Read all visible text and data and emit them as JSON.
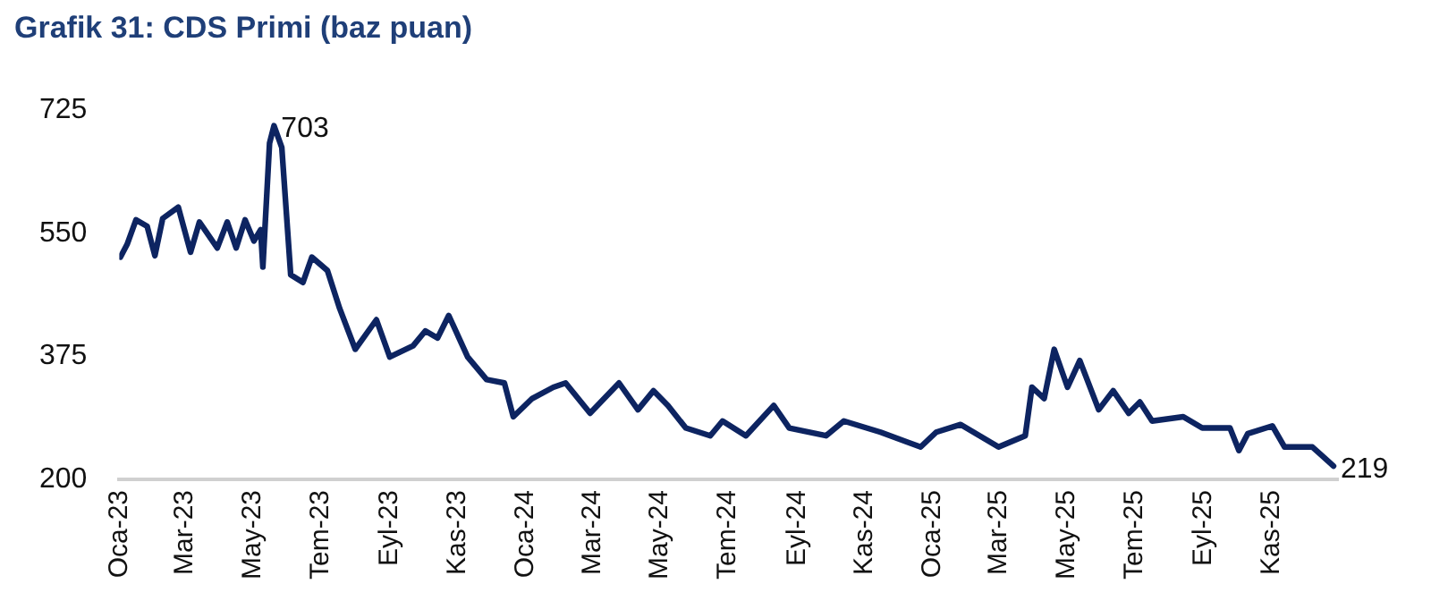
{
  "chart_data": {
    "type": "line",
    "title": "Grafik 31: CDS Primi (baz puan)",
    "x": [
      "2023-01-02",
      "2023-01-08",
      "2023-01-16",
      "2023-01-26",
      "2023-02-02",
      "2023-02-09",
      "2023-02-23",
      "2023-03-06",
      "2023-03-14",
      "2023-03-30",
      "2023-04-08",
      "2023-04-16",
      "2023-04-24",
      "2023-05-02",
      "2023-05-08",
      "2023-05-10",
      "2023-05-16",
      "2023-05-20",
      "2023-05-27",
      "2023-06-04",
      "2023-06-15",
      "2023-06-23",
      "2023-07-07",
      "2023-07-18",
      "2023-08-01",
      "2023-08-20",
      "2023-09-01",
      "2023-09-22",
      "2023-10-03",
      "2023-10-14",
      "2023-10-24",
      "2023-11-10",
      "2023-11-27",
      "2023-12-13",
      "2023-12-21",
      "2024-01-07",
      "2024-01-26",
      "2024-02-06",
      "2024-02-28",
      "2024-03-25",
      "2024-04-11",
      "2024-04-25",
      "2024-05-08",
      "2024-05-24",
      "2024-06-15",
      "2024-06-26",
      "2024-07-17",
      "2024-08-11",
      "2024-08-25",
      "2024-09-27",
      "2024-10-13",
      "2024-11-15",
      "2024-12-21",
      "2025-01-04",
      "2025-01-26",
      "2025-03-01",
      "2025-03-25",
      "2025-03-31",
      "2025-04-11",
      "2025-04-20",
      "2025-05-02",
      "2025-05-13",
      "2025-05-30",
      "2025-06-12",
      "2025-06-26",
      "2025-07-06",
      "2025-07-17",
      "2025-08-14",
      "2025-08-31",
      "2025-09-25",
      "2025-10-03",
      "2025-10-11",
      "2025-11-02",
      "2025-11-13",
      "2025-12-08",
      "2025-12-27"
    ],
    "series": [
      {
        "color": "#0d2461",
        "values": [
          516,
          534,
          569,
          560,
          518,
          571,
          587,
          523,
          566,
          529,
          566,
          529,
          569,
          539,
          555,
          502,
          678,
          703,
          672,
          491,
          480,
          516,
          497,
          443,
          385,
          427,
          374,
          390,
          411,
          401,
          433,
          374,
          342,
          337,
          289,
          315,
          331,
          337,
          294,
          337,
          299,
          326,
          305,
          273,
          262,
          283,
          262,
          305,
          273,
          262,
          283,
          267,
          246,
          267,
          278,
          246,
          262,
          331,
          315,
          385,
          331,
          369,
          299,
          326,
          294,
          310,
          283,
          289,
          273,
          273,
          241,
          265,
          276,
          246,
          246,
          219
        ]
      }
    ],
    "xlim": [
      "2023-01-01",
      "2025-12-31"
    ],
    "xticks": [
      {
        "value": "2023-01",
        "label": "Oca-23"
      },
      {
        "value": "2023-03",
        "label": "Mar-23"
      },
      {
        "value": "2023-05",
        "label": "May-23"
      },
      {
        "value": "2023-07",
        "label": "Tem-23"
      },
      {
        "value": "2023-09",
        "label": "Eyl-23"
      },
      {
        "value": "2023-11",
        "label": "Kas-23"
      },
      {
        "value": "2024-01",
        "label": "Oca-24"
      },
      {
        "value": "2024-03",
        "label": "Mar-24"
      },
      {
        "value": "2024-05",
        "label": "May-24"
      },
      {
        "value": "2024-07",
        "label": "Tem-24"
      },
      {
        "value": "2024-09",
        "label": "Eyl-24"
      },
      {
        "value": "2024-11",
        "label": "Kas-24"
      },
      {
        "value": "2025-01",
        "label": "Oca-25"
      },
      {
        "value": "2025-03",
        "label": "Mar-25"
      },
      {
        "value": "2025-05",
        "label": "May-25"
      },
      {
        "value": "2025-07",
        "label": "Tem-25"
      },
      {
        "value": "2025-09",
        "label": "Eyl-25"
      },
      {
        "value": "2025-11",
        "label": "Kas-25"
      }
    ],
    "ylim": [
      200,
      725
    ],
    "yticks": [
      200,
      375,
      550,
      725
    ],
    "annotations": [
      {
        "text": "703",
        "x": "2023-05-20",
        "y": 703
      },
      {
        "text": "219",
        "x": "2025-12-27",
        "y": 219
      }
    ],
    "marker": "none",
    "line_style": "solid"
  }
}
